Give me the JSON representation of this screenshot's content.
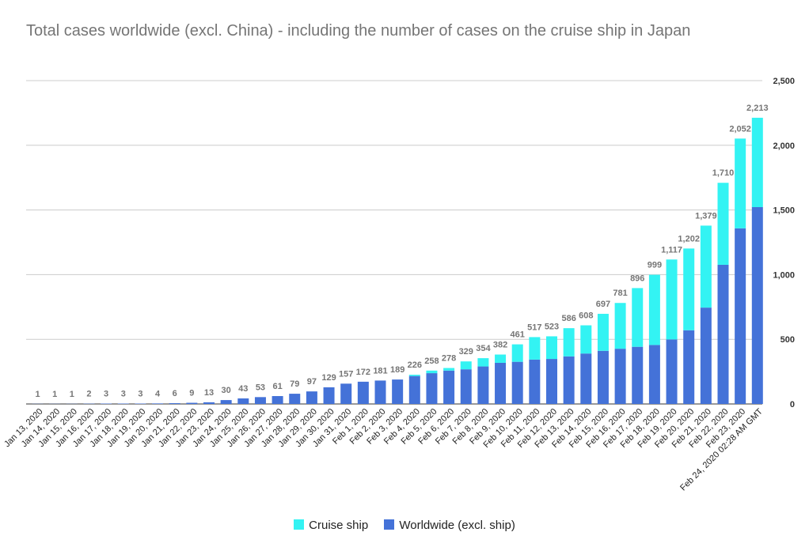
{
  "chart_data": {
    "type": "bar",
    "stacked": true,
    "title": "Total cases worldwide (excl. China) - including the number of cases on the cruise ship in Japan",
    "xlabel": "",
    "ylabel": "",
    "ylim": [
      0,
      2500
    ],
    "y_ticks": [
      0,
      500,
      1000,
      1500,
      2000,
      2500
    ],
    "y_tick_labels": [
      "0",
      "500",
      "1,000",
      "1,500",
      "2,000",
      "2,500"
    ],
    "y_axis_side": "right",
    "grid": true,
    "legend_position": "bottom",
    "categories": [
      "Jan 13, 2020",
      "Jan 14, 2020",
      "Jan 15, 2020",
      "Jan 16, 2020",
      "Jan 17, 2020",
      "Jan 18, 2020",
      "Jan 19, 2020",
      "Jan 20, 2020",
      "Jan 21, 2020",
      "Jan 22, 2020",
      "Jan 23, 2020",
      "Jan 24, 2020",
      "Jan 25, 2020",
      "Jan 26, 2020",
      "Jan 27, 2020",
      "Jan 28, 2020",
      "Jan 29, 2020",
      "Jan 30, 2020",
      "Jan 31, 2020",
      "Feb 1, 2020",
      "Feb 2, 2020",
      "Feb 3, 2020",
      "Feb 4, 2020",
      "Feb 5, 2020",
      "Feb 6, 2020",
      "Feb 7, 2020",
      "Feb 8, 2020",
      "Feb 9, 2020",
      "Feb 10, 2020",
      "Feb 11, 2020",
      "Feb 12, 2020",
      "Feb 13, 2020",
      "Feb 14, 2020",
      "Feb 15, 2020",
      "Feb 16, 2020",
      "Feb 17, 2020",
      "Feb 18, 2020",
      "Feb 19, 2020",
      "Feb 20, 2020",
      "Feb 21, 2020",
      "Feb 22, 2020",
      "Feb 23, 2020",
      "Feb 24, 2020  02:28 AM GMT"
    ],
    "series": [
      {
        "name": "Worldwide (excl. ship)",
        "color": "#4472d8",
        "values": [
          1,
          1,
          1,
          2,
          3,
          3,
          3,
          4,
          6,
          9,
          13,
          30,
          43,
          53,
          61,
          79,
          97,
          129,
          157,
          172,
          181,
          189,
          216,
          238,
          258,
          268,
          290,
          318,
          326,
          343,
          348,
          368,
          390,
          411,
          427,
          442,
          456,
          499,
          570,
          745,
          1076,
          1358,
          1522
        ]
      },
      {
        "name": "Cruise ship",
        "color": "#33f3f3",
        "values": [
          0,
          0,
          0,
          0,
          0,
          0,
          0,
          0,
          0,
          0,
          0,
          0,
          0,
          0,
          0,
          0,
          0,
          0,
          0,
          0,
          0,
          0,
          10,
          20,
          20,
          61,
          64,
          64,
          135,
          174,
          175,
          218,
          218,
          286,
          354,
          454,
          543,
          618,
          632,
          634,
          634,
          694,
          691
        ]
      }
    ],
    "totals": [
      1,
      1,
      1,
      2,
      3,
      3,
      3,
      4,
      6,
      9,
      13,
      30,
      43,
      53,
      61,
      79,
      97,
      129,
      157,
      172,
      181,
      189,
      226,
      258,
      278,
      329,
      354,
      382,
      461,
      517,
      523,
      586,
      608,
      697,
      781,
      896,
      999,
      1117,
      1202,
      1379,
      1710,
      2052,
      2213
    ],
    "total_labels": [
      "1",
      "1",
      "1",
      "2",
      "3",
      "3",
      "3",
      "4",
      "6",
      "9",
      "13",
      "30",
      "43",
      "53",
      "61",
      "79",
      "97",
      "129",
      "157",
      "172",
      "181",
      "189",
      "226",
      "258",
      "278",
      "329",
      "354",
      "382",
      "461",
      "517",
      "523",
      "586",
      "608",
      "697",
      "781",
      "896",
      "999",
      "1,117",
      "1,202",
      "1,379",
      "1,710",
      "2,052",
      "2,213"
    ],
    "legend": [
      "Cruise ship",
      "Worldwide (excl. ship)"
    ]
  }
}
